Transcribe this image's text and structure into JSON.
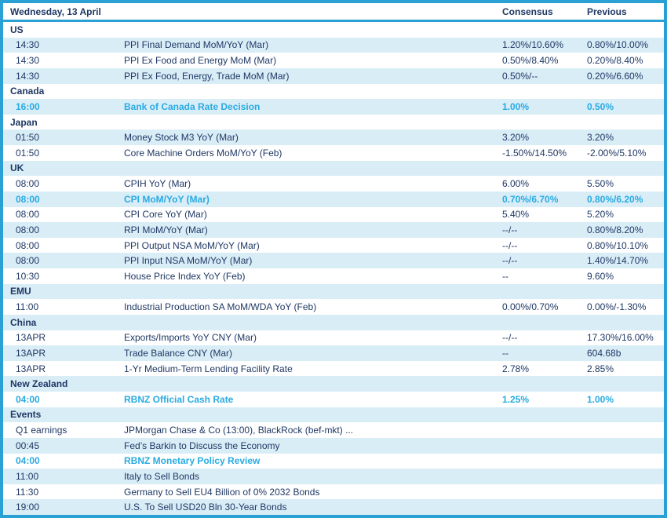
{
  "colors": {
    "border": "#2AA0D5",
    "row_alt_background": "#D9EDF7",
    "text_navy": "#1F3864",
    "text_highlight_cyan": "#29ABE2"
  },
  "header": {
    "title": "Wednesday, 13 April",
    "consensus_label": "Consensus",
    "previous_label": "Previous"
  },
  "sections": [
    {
      "name": "US",
      "rows": [
        {
          "time": "14:30",
          "event": "PPI Final Demand MoM/YoY (Mar)",
          "consensus": "1.20%/10.60%",
          "previous": "0.80%/10.00%",
          "highlight": false
        },
        {
          "time": "14:30",
          "event": "PPI Ex Food and Energy MoM (Mar)",
          "consensus": "0.50%/8.40%",
          "previous": "0.20%/8.40%",
          "highlight": false
        },
        {
          "time": "14:30",
          "event": "PPI Ex Food, Energy, Trade MoM (Mar)",
          "consensus": "0.50%/--",
          "previous": "0.20%/6.60%",
          "highlight": false
        }
      ]
    },
    {
      "name": "Canada",
      "rows": [
        {
          "time": "16:00",
          "event": "Bank of Canada Rate Decision",
          "consensus": "1.00%",
          "previous": "0.50%",
          "highlight": true
        }
      ]
    },
    {
      "name": "Japan",
      "rows": [
        {
          "time": "01:50",
          "event": "Money Stock M3 YoY (Mar)",
          "consensus": "3.20%",
          "previous": "3.20%",
          "highlight": false
        },
        {
          "time": "01:50",
          "event": "Core Machine Orders MoM/YoY (Feb)",
          "consensus": "-1.50%/14.50%",
          "previous": "-2.00%/5.10%",
          "highlight": false
        }
      ]
    },
    {
      "name": "UK",
      "rows": [
        {
          "time": "08:00",
          "event": "CPIH YoY (Mar)",
          "consensus": "6.00%",
          "previous": "5.50%",
          "highlight": false
        },
        {
          "time": "08:00",
          "event": "CPI MoM/YoY (Mar)",
          "consensus": "0.70%/6.70%",
          "previous": "0.80%/6.20%",
          "highlight": true
        },
        {
          "time": "08:00",
          "event": "CPI Core YoY (Mar)",
          "consensus": "5.40%",
          "previous": "5.20%",
          "highlight": false
        },
        {
          "time": "08:00",
          "event": "RPI MoM/YoY (Mar)",
          "consensus": "--/--",
          "previous": "0.80%/8.20%",
          "highlight": false
        },
        {
          "time": "08:00",
          "event": "PPI Output NSA MoM/YoY (Mar)",
          "consensus": "--/--",
          "previous": "0.80%/10.10%",
          "highlight": false
        },
        {
          "time": "08:00",
          "event": "PPI Input NSA MoM/YoY (Mar)",
          "consensus": "--/--",
          "previous": "1.40%/14.70%",
          "highlight": false
        },
        {
          "time": "10:30",
          "event": "House Price Index YoY (Feb)",
          "consensus": "--",
          "previous": "9.60%",
          "highlight": false
        }
      ]
    },
    {
      "name": "EMU",
      "rows": [
        {
          "time": "11:00",
          "event": "Industrial Production SA MoM/WDA YoY (Feb)",
          "consensus": "0.00%/0.70%",
          "previous": "0.00%/-1.30%",
          "highlight": false
        }
      ]
    },
    {
      "name": "China",
      "rows": [
        {
          "time": "13APR",
          "event": "Exports/Imports YoY CNY (Mar)",
          "consensus": "--/--",
          "previous": "17.30%/16.00%",
          "highlight": false
        },
        {
          "time": "13APR",
          "event": "Trade Balance CNY (Mar)",
          "consensus": "--",
          "previous": "604.68b",
          "highlight": false
        },
        {
          "time": "13APR",
          "event": "1-Yr Medium-Term Lending Facility Rate",
          "consensus": "2.78%",
          "previous": "2.85%",
          "highlight": false
        }
      ]
    },
    {
      "name": "New Zealand",
      "rows": [
        {
          "time": "04:00",
          "event": "RBNZ Official Cash Rate",
          "consensus": "1.25%",
          "previous": "1.00%",
          "highlight": true
        }
      ]
    },
    {
      "name": "Events",
      "rows": [
        {
          "time": "Q1 earnings",
          "event": "JPMorgan Chase & Co (13:00), BlackRock (bef-mkt) ...",
          "consensus": "",
          "previous": "",
          "highlight": false
        },
        {
          "time": "00:45",
          "event": "Fed’s Barkin to Discuss the Economy",
          "consensus": "",
          "previous": "",
          "highlight": false
        },
        {
          "time": "04:00",
          "event": "RBNZ Monetary Policy Review",
          "consensus": "",
          "previous": "",
          "highlight": true
        },
        {
          "time": "11:00",
          "event": "Italy to Sell Bonds",
          "consensus": "",
          "previous": "",
          "highlight": false
        },
        {
          "time": "11:30",
          "event": "Germany to Sell EU4 Billion of 0% 2032 Bonds",
          "consensus": "",
          "previous": "",
          "highlight": false
        },
        {
          "time": "19:00",
          "event": "U.S. To Sell USD20 Bln 30-Year Bonds",
          "consensus": "",
          "previous": "",
          "highlight": false
        }
      ]
    }
  ]
}
